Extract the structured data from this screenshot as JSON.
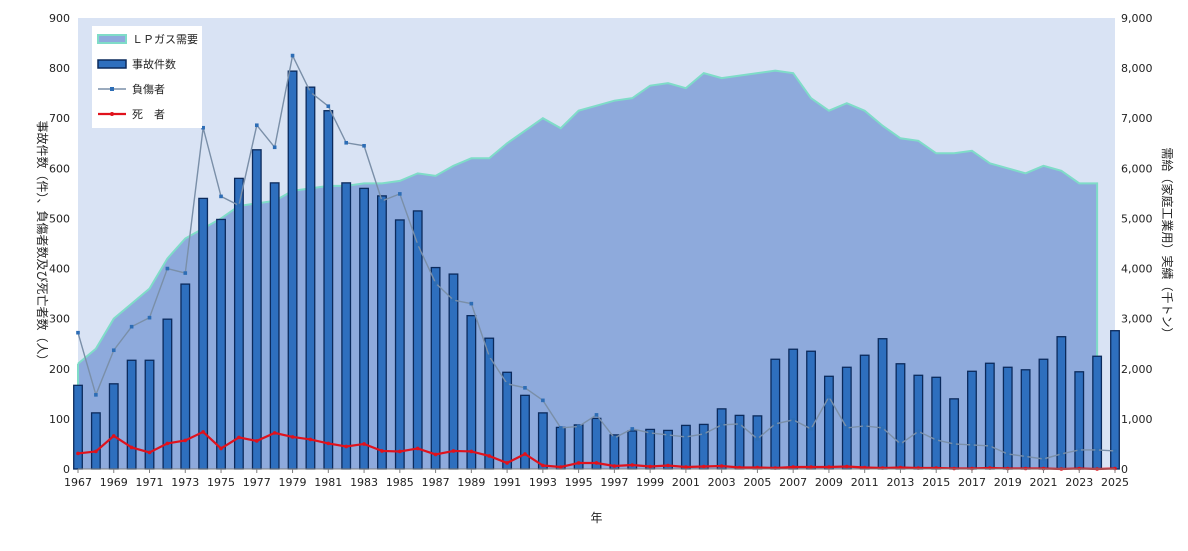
{
  "chart_data": {
    "type": "bar",
    "title": "",
    "xlabel": "年",
    "ylabel_left": "事故件数（件）、負傷者数及び死亡者数（人）",
    "ylabel_right": "需給（家庭工業用）実績（千トン）",
    "ylim_left": [
      0,
      900
    ],
    "ylim_right": [
      0,
      9000
    ],
    "left_ticks": [
      "0",
      "100",
      "200",
      "300",
      "400",
      "500",
      "600",
      "700",
      "800",
      "900"
    ],
    "right_ticks": [
      "0",
      "1,000",
      "2,000",
      "3,000",
      "4,000",
      "5,000",
      "6,000",
      "7,000",
      "8,000",
      "9,000"
    ],
    "x_tick_labels": [
      "1967",
      "1969",
      "1971",
      "1973",
      "1975",
      "1977",
      "1979",
      "1981",
      "1983",
      "1985",
      "1987",
      "1989",
      "1991",
      "1993",
      "1995",
      "1997",
      "1999",
      "2001",
      "2003",
      "2005",
      "2007",
      "2009",
      "2011",
      "2013",
      "2015",
      "2017",
      "2019",
      "2021",
      "2023",
      "2025"
    ],
    "legend_placement": "top-left",
    "grid": false,
    "years": [
      1967,
      1968,
      1969,
      1970,
      1971,
      1972,
      1973,
      1974,
      1975,
      1976,
      1977,
      1978,
      1979,
      1980,
      1981,
      1982,
      1983,
      1984,
      1985,
      1986,
      1987,
      1988,
      1989,
      1990,
      1991,
      1992,
      1993,
      1994,
      1995,
      1996,
      1997,
      1998,
      1999,
      2000,
      2001,
      2002,
      2003,
      2004,
      2005,
      2006,
      2007,
      2008,
      2009,
      2010,
      2011,
      2012,
      2013,
      2014,
      2015,
      2016,
      2017,
      2018,
      2019,
      2020,
      2021,
      2022,
      2023,
      2024,
      2025
    ],
    "series": [
      {
        "name": "ＬＰガス需要",
        "kind": "area",
        "axis": "right",
        "color": "#8eaadc",
        "edge_color": "#7fdcc8",
        "values": [
          2100,
          2400,
          3000,
          3300,
          3600,
          4200,
          4600,
          4800,
          5000,
          5250,
          5300,
          5350,
          5550,
          5600,
          5650,
          5650,
          5700,
          5700,
          5750,
          5900,
          5850,
          6050,
          6200,
          6200,
          6500,
          6750,
          7000,
          6800,
          7150,
          7250,
          7350,
          7400,
          7650,
          7700,
          7600,
          7900,
          7800,
          7850,
          7900,
          7950,
          7900,
          7400,
          7150,
          7300,
          7150,
          6850,
          6600,
          6550,
          6300,
          6300,
          6350,
          6100,
          6000,
          5900,
          6050,
          5950,
          5700,
          5700,
          null
        ],
        "last_visible_year": 2024
      },
      {
        "name": "事故件数",
        "kind": "bar",
        "axis": "left",
        "color": "#2e6fbe",
        "edge_color": "#0b2a5c",
        "values": [
          167,
          112,
          170,
          217,
          217,
          299,
          369,
          540,
          498,
          580,
          637,
          571,
          794,
          762,
          715,
          571,
          560,
          545,
          497,
          515,
          402,
          389,
          306,
          261,
          193,
          147,
          112,
          83,
          88,
          101,
          68,
          76,
          79,
          77,
          87,
          89,
          120,
          107,
          106,
          219,
          239,
          235,
          185,
          203,
          227,
          260,
          210,
          187,
          183,
          140,
          195,
          211,
          203,
          198,
          219,
          264,
          194,
          225,
          276
        ]
      },
      {
        "name": "負傷者",
        "kind": "line",
        "axis": "left",
        "color": "#7a8fa8",
        "marker_color": "#2d6db5",
        "values": [
          272,
          148,
          237,
          284,
          302,
          400,
          391,
          681,
          544,
          526,
          686,
          642,
          825,
          752,
          724,
          651,
          645,
          535,
          549,
          448,
          371,
          337,
          330,
          225,
          170,
          162,
          137,
          82,
          85,
          108,
          62,
          80,
          72,
          68,
          64,
          70,
          88,
          90,
          60,
          90,
          98,
          80,
          144,
          82,
          86,
          82,
          50,
          75,
          58,
          50,
          48,
          46,
          30,
          25,
          20,
          30,
          38,
          38,
          36
        ]
      },
      {
        "name": "死　者",
        "kind": "line",
        "axis": "left",
        "color": "#e0121c",
        "values": [
          31,
          35,
          66,
          43,
          33,
          51,
          57,
          74,
          41,
          63,
          56,
          72,
          64,
          59,
          51,
          45,
          50,
          36,
          35,
          41,
          29,
          36,
          35,
          26,
          12,
          30,
          7,
          4,
          12,
          12,
          6,
          8,
          5,
          7,
          4,
          5,
          6,
          3,
          3,
          2,
          4,
          4,
          4,
          5,
          3,
          2,
          3,
          2,
          2,
          1,
          1,
          2,
          1,
          1,
          1,
          0,
          1,
          0,
          1
        ]
      }
    ]
  }
}
